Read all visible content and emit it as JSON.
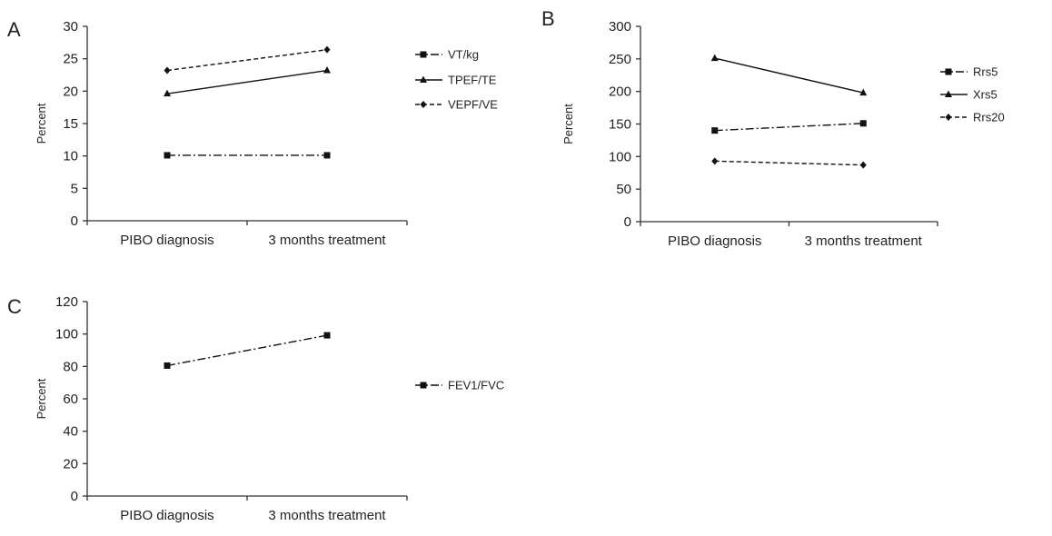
{
  "chart_data": [
    {
      "panel": "A",
      "type": "line",
      "categories": [
        "PIBO diagnosis",
        "3 months treatment"
      ],
      "ylabel": "Percent",
      "ylim": [
        0,
        30
      ],
      "yticks": [
        0,
        5,
        10,
        15,
        20,
        25,
        30
      ],
      "legend": "right",
      "series": [
        {
          "name": "VT/kg",
          "values": [
            10.1,
            10.1
          ],
          "style": "dashdot",
          "marker": "square"
        },
        {
          "name": "TPEF/TE",
          "values": [
            19.6,
            23.2
          ],
          "style": "solid",
          "marker": "triangle"
        },
        {
          "name": "VEPF/VE",
          "values": [
            23.2,
            26.4
          ],
          "style": "dashed",
          "marker": "diamond"
        }
      ]
    },
    {
      "panel": "B",
      "type": "line",
      "categories": [
        "PIBO diagnosis",
        "3 months treatment"
      ],
      "ylabel": "Percent",
      "ylim": [
        0,
        300
      ],
      "yticks": [
        0,
        50,
        100,
        150,
        200,
        250,
        300
      ],
      "legend": "right",
      "series": [
        {
          "name": "Rrs5",
          "values": [
            140,
            151
          ],
          "style": "dashdot",
          "marker": "square"
        },
        {
          "name": "Xrs5",
          "values": [
            251,
            198
          ],
          "style": "solid",
          "marker": "triangle"
        },
        {
          "name": "Rrs20",
          "values": [
            93,
            87
          ],
          "style": "dashed",
          "marker": "diamond"
        }
      ]
    },
    {
      "panel": "C",
      "type": "line",
      "categories": [
        "PIBO diagnosis",
        "3 months treatment"
      ],
      "ylabel": "Percent",
      "ylim": [
        0,
        120
      ],
      "yticks": [
        0,
        20,
        40,
        60,
        80,
        100,
        120
      ],
      "legend": "right",
      "series": [
        {
          "name": "FEV1/FVC",
          "values": [
            80.5,
            99.2
          ],
          "style": "dashdot",
          "marker": "square"
        }
      ]
    }
  ]
}
